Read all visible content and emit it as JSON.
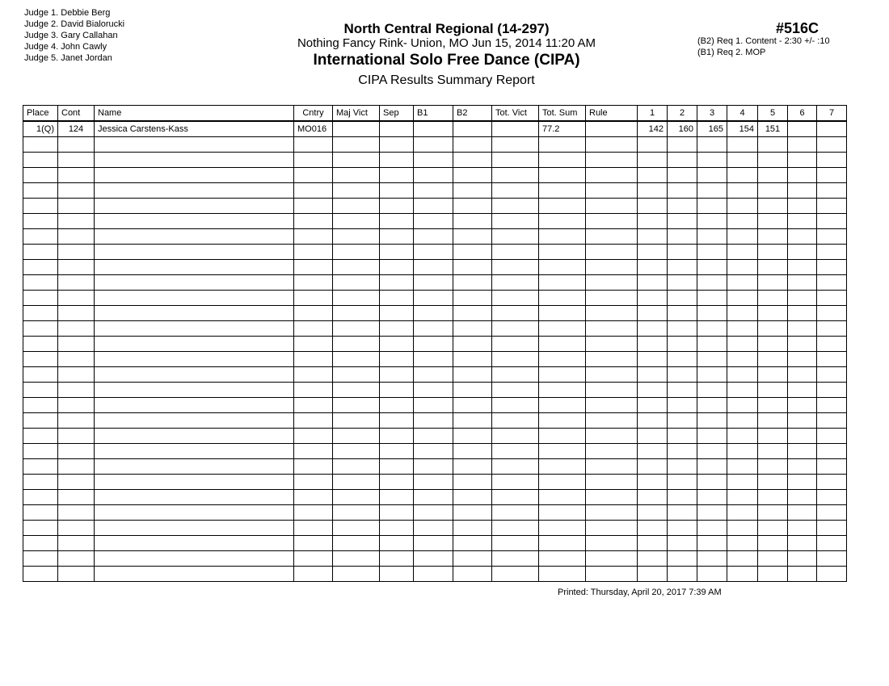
{
  "judges": [
    "Judge  1.  Debbie Berg",
    "Judge  2.  David Bialorucki",
    "Judge  3.  Gary Callahan",
    "Judge  4.  John Cawly",
    "Judge  5.  Janet Jordan"
  ],
  "header": {
    "competition": "North Central Regional (14-297)",
    "venue": "Nothing Fancy Rink- Union, MO  Jun 15, 2014  11:20 AM",
    "event": "International Solo Free Dance (CIPA)",
    "report": "CIPA Results Summary Report",
    "event_number": "#516C"
  },
  "requirements": [
    "(B2) Req  1.  Content - 2:30 +/- :10",
    "(B1) Req  2.  MOP"
  ],
  "table": {
    "columns": [
      "Place",
      "Cont",
      "Name",
      "Cntry",
      "Maj Vict",
      "Sep",
      "B1",
      "B2",
      "Tot. Vict",
      "Tot. Sum",
      "Rule",
      "1",
      "2",
      "3",
      "4",
      "5",
      "6",
      "7"
    ],
    "rows": [
      [
        "1(Q)",
        "124",
        "Jessica Carstens-Kass",
        "MO016",
        "",
        "",
        "",
        "",
        "",
        "77.2",
        "",
        "142",
        "160",
        "165",
        "154",
        "151",
        "",
        ""
      ]
    ]
  },
  "footer": {
    "printed": "Printed:  Thursday, April 20, 2017  7:39 AM"
  }
}
